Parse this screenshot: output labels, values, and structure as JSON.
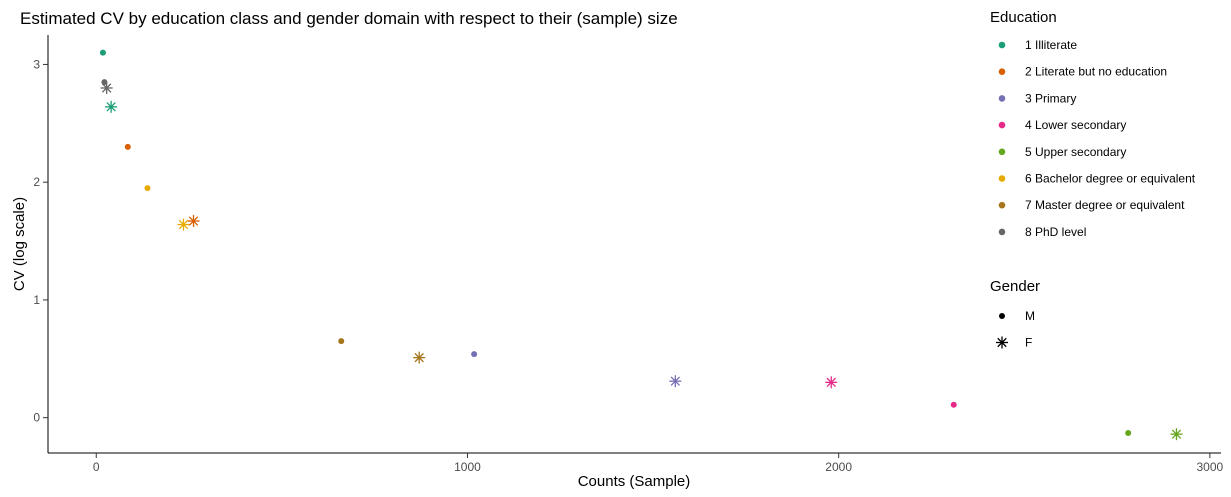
{
  "chart_data": {
    "type": "scatter",
    "title": "Estimated CV by education class and gender domain with respect to their (sample) size",
    "xlabel": "Counts (Sample)",
    "ylabel": "CV (log scale)",
    "xlim": [
      -130,
      3030
    ],
    "ylim": [
      -0.3,
      3.25
    ],
    "xticks": [
      0,
      1000,
      2000,
      3000
    ],
    "yticks": [
      0,
      1,
      2,
      3
    ],
    "grid": false,
    "legend": {
      "placement": "right",
      "color_title": "Education",
      "shape_title": "Gender"
    },
    "education": [
      {
        "name": "1 Illiterate",
        "color": "#1B9E77"
      },
      {
        "name": "2 Literate but no education",
        "color": "#D95F02"
      },
      {
        "name": "3 Primary",
        "color": "#7570B3"
      },
      {
        "name": "4 Lower secondary",
        "color": "#E7298A"
      },
      {
        "name": "5 Upper secondary",
        "color": "#66A61E"
      },
      {
        "name": "6 Bachelor degree or equivalent",
        "color": "#E6AB02"
      },
      {
        "name": "7 Master degree or equivalent",
        "color": "#A6761D"
      },
      {
        "name": "8 PhD level",
        "color": "#666666"
      }
    ],
    "genders": [
      {
        "name": "M",
        "shape": "dot"
      },
      {
        "name": "F",
        "shape": "asterisk"
      }
    ],
    "points": [
      {
        "education": 0,
        "gender": "M",
        "x": 18,
        "y": 3.1
      },
      {
        "education": 0,
        "gender": "F",
        "x": 40,
        "y": 2.64
      },
      {
        "education": 1,
        "gender": "M",
        "x": 85,
        "y": 2.3
      },
      {
        "education": 1,
        "gender": "F",
        "x": 262,
        "y": 1.67
      },
      {
        "education": 2,
        "gender": "M",
        "x": 1018,
        "y": 0.54
      },
      {
        "education": 2,
        "gender": "F",
        "x": 1560,
        "y": 0.31
      },
      {
        "education": 3,
        "gender": "M",
        "x": 2310,
        "y": 0.11
      },
      {
        "education": 3,
        "gender": "F",
        "x": 1980,
        "y": 0.3
      },
      {
        "education": 4,
        "gender": "M",
        "x": 2780,
        "y": -0.13
      },
      {
        "education": 4,
        "gender": "F",
        "x": 2910,
        "y": -0.14
      },
      {
        "education": 5,
        "gender": "M",
        "x": 138,
        "y": 1.95
      },
      {
        "education": 5,
        "gender": "F",
        "x": 235,
        "y": 1.64
      },
      {
        "education": 6,
        "gender": "M",
        "x": 660,
        "y": 0.65
      },
      {
        "education": 6,
        "gender": "F",
        "x": 870,
        "y": 0.51
      },
      {
        "education": 7,
        "gender": "M",
        "x": 22,
        "y": 2.85
      },
      {
        "education": 7,
        "gender": "F",
        "x": 28,
        "y": 2.8
      }
    ]
  }
}
